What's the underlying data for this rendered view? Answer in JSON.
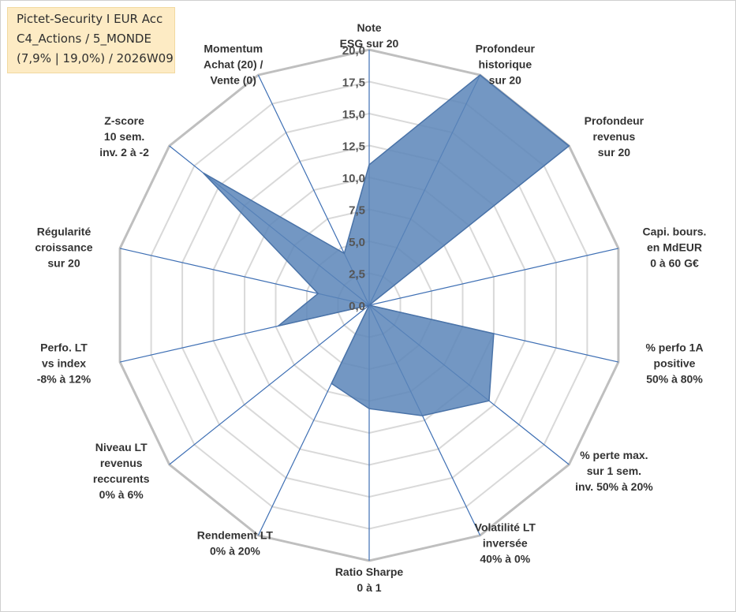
{
  "legend": {
    "line1": "Pictet-Security I EUR Acc",
    "line2": "C4_Actions / 5_MONDE",
    "line3": "(7,9% | 19,0%) / 2026W09"
  },
  "colors": {
    "fill": "#5b85b8",
    "stroke": "#4a73a8",
    "spoke": "#3e6fb4",
    "grid_outer": "#bfbfbf",
    "grid_inner": "#d9d9d9"
  },
  "chart_data": {
    "type": "radar",
    "title": "",
    "rmin": 0,
    "rmax": 20,
    "tick_step": 2.5,
    "ticks": [
      "0,0",
      "2,5",
      "5,0",
      "7,5",
      "10,0",
      "12,5",
      "15,0",
      "17,5",
      "20,0"
    ],
    "axes": [
      {
        "label": [
          "Note",
          "ESG sur 20"
        ]
      },
      {
        "label": [
          "Profondeur",
          "historique",
          "sur 20"
        ]
      },
      {
        "label": [
          "Profondeur",
          "revenus",
          "sur 20"
        ]
      },
      {
        "label": [
          "Capi. bours.",
          "en MdEUR",
          "0 à 60 G€"
        ]
      },
      {
        "label": [
          "% perfo 1A",
          "positive",
          "50% à 80%"
        ]
      },
      {
        "label": [
          "% perte max.",
          "sur 1 sem.",
          "inv. 50% à 20%"
        ]
      },
      {
        "label": [
          "Volatilité LT",
          "inversée",
          "40% à 0%"
        ]
      },
      {
        "label": [
          "Ratio Sharpe",
          "0 à 1"
        ]
      },
      {
        "label": [
          "Rendement LT",
          "0% à 20%"
        ]
      },
      {
        "label": [
          "Niveau LT",
          "revenus",
          "reccurents",
          "0% à 6%"
        ]
      },
      {
        "label": [
          "Perfo. LT",
          "vs index",
          "-8% à 12%"
        ]
      },
      {
        "label": [
          "Régularité",
          "croissance",
          "sur 20"
        ]
      },
      {
        "label": [
          "Z-score",
          "10 sem.",
          "inv. 2 à -2"
        ]
      },
      {
        "label": [
          "Momentum",
          "Achat (20) /",
          "Vente (0)"
        ]
      }
    ],
    "series": [
      {
        "values": [
          11.0,
          20.0,
          20.0,
          0.0,
          10.0,
          12.0,
          9.6,
          8.1,
          6.8,
          0.0,
          7.3,
          4.1,
          16.6,
          4.5
        ]
      }
    ]
  }
}
